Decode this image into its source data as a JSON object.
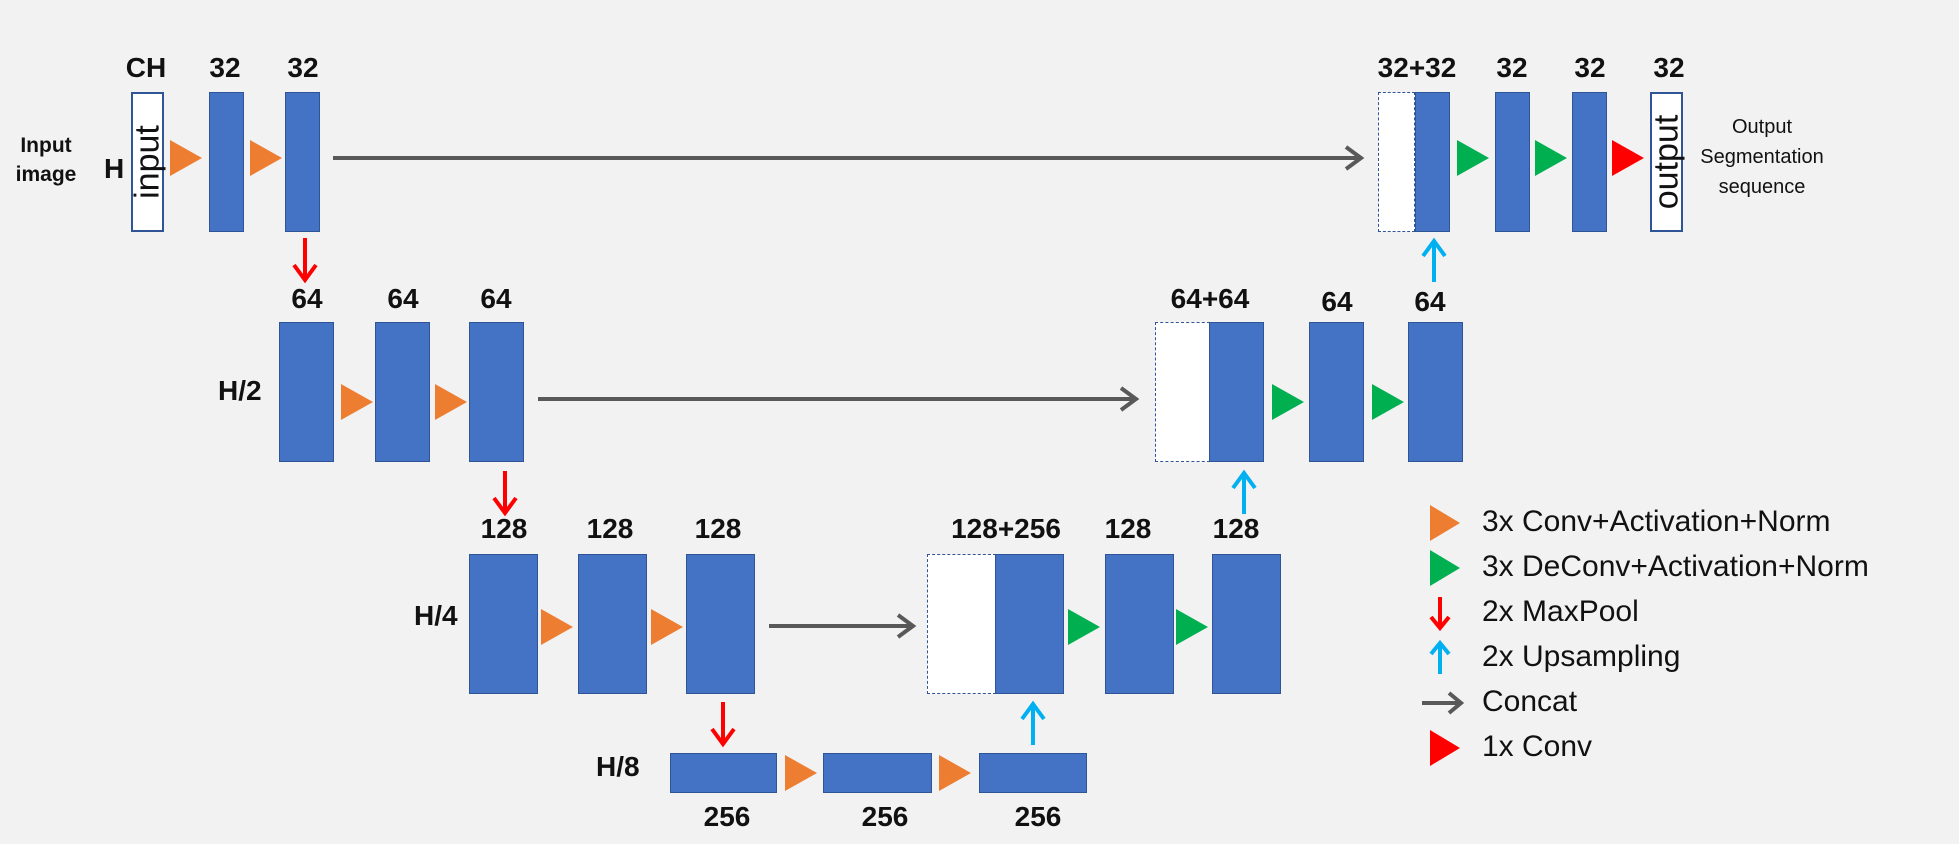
{
  "labels": {
    "ch": "CH",
    "row1": [
      "32",
      "32",
      "32+32",
      "32",
      "32",
      "32"
    ],
    "row2": [
      "64",
      "64",
      "64",
      "64+64",
      "64",
      "64"
    ],
    "row3": [
      "128",
      "128",
      "128",
      "128+256",
      "128",
      "128"
    ],
    "row4": [
      "256",
      "256",
      "256"
    ]
  },
  "side": {
    "h": "H",
    "h2": "H/2",
    "h4": "H/4",
    "h8": "H/8",
    "input_image_1": "Input",
    "input_image_2": "image"
  },
  "io": {
    "input": "input",
    "output": "output"
  },
  "output_caption": [
    "Output",
    "Segmentation",
    "sequence"
  ],
  "legend": [
    {
      "icon": "orange-triangle-icon",
      "text": "3x Conv+Activation+Norm",
      "color": "#ed7d31"
    },
    {
      "icon": "green-triangle-icon",
      "text": "3x DeConv+Activation+Norm",
      "color": "#00b050"
    },
    {
      "icon": "red-down-arrow-icon",
      "text": "2x MaxPool",
      "color": "#ff0000"
    },
    {
      "icon": "blue-up-arrow-icon",
      "text": "2x Upsampling",
      "color": "#00b0f0"
    },
    {
      "icon": "gray-right-arrow-icon",
      "text": "Concat",
      "color": "#595959"
    },
    {
      "icon": "red-triangle-icon",
      "text": "1x Conv",
      "color": "#ff0000"
    }
  ],
  "colors": {
    "block": "#4472c4",
    "block_border": "#2f5597",
    "background": "#f2f2f2"
  }
}
